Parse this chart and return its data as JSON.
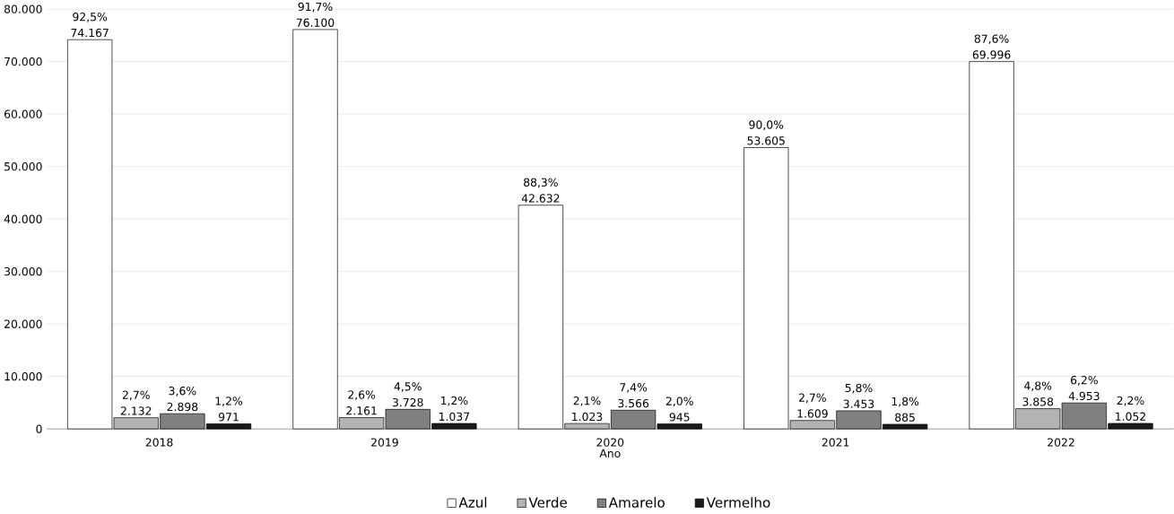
{
  "chart_data": {
    "type": "bar",
    "xlabel": "Ano",
    "categories": [
      "2018",
      "2019",
      "2020",
      "2021",
      "2022"
    ],
    "ylim": [
      0,
      80000
    ],
    "yticks": [
      {
        "value": 0,
        "label": "0"
      },
      {
        "value": 10000,
        "label": "10.000"
      },
      {
        "value": 20000,
        "label": "20.000"
      },
      {
        "value": 30000,
        "label": "30.000"
      },
      {
        "value": 40000,
        "label": "40.000"
      },
      {
        "value": 50000,
        "label": "50.000"
      },
      {
        "value": 60000,
        "label": "60.000"
      },
      {
        "value": 70000,
        "label": "70.000"
      },
      {
        "value": 80000,
        "label": "80.000"
      }
    ],
    "grid": "y",
    "legend": "bottom",
    "series": [
      {
        "name": "Azul",
        "color": "#ffffff",
        "values": [
          74167,
          76100,
          42632,
          53605,
          69996
        ],
        "value_labels": [
          "74.167",
          "76.100",
          "42.632",
          "53.605",
          "69.996"
        ]
      },
      {
        "name": "Verde",
        "color": "#b3b3b3",
        "values": [
          2132,
          2161,
          1023,
          1609,
          3858
        ],
        "value_labels": [
          "2.132",
          "2.161",
          "1.023",
          "1.609",
          "3.858"
        ]
      },
      {
        "name": "Amarelo",
        "color": "#808080",
        "values": [
          2898,
          3728,
          3566,
          3453,
          4953
        ],
        "value_labels": [
          "2.898",
          "3.728",
          "3.566",
          "3.453",
          "4.953"
        ]
      },
      {
        "name": "Vermelho",
        "color": "#1a1a1a",
        "values": [
          971,
          1037,
          945,
          885,
          1052
        ],
        "value_labels": [
          "971",
          "1.037",
          "945",
          "885",
          "1.052"
        ]
      }
    ],
    "annotations": [
      "92,5%",
      "91,7%",
      "88,3%",
      "90,0%",
      "87,6%",
      "2,7%",
      "2,6%",
      "2,1%",
      "2,7%",
      "4,8%",
      "3,6%",
      "4,5%",
      "7,4%",
      "5,8%",
      "6,2%",
      "1,2%",
      "1,2%",
      "2,0%",
      "1,8%",
      "2,2%"
    ]
  }
}
